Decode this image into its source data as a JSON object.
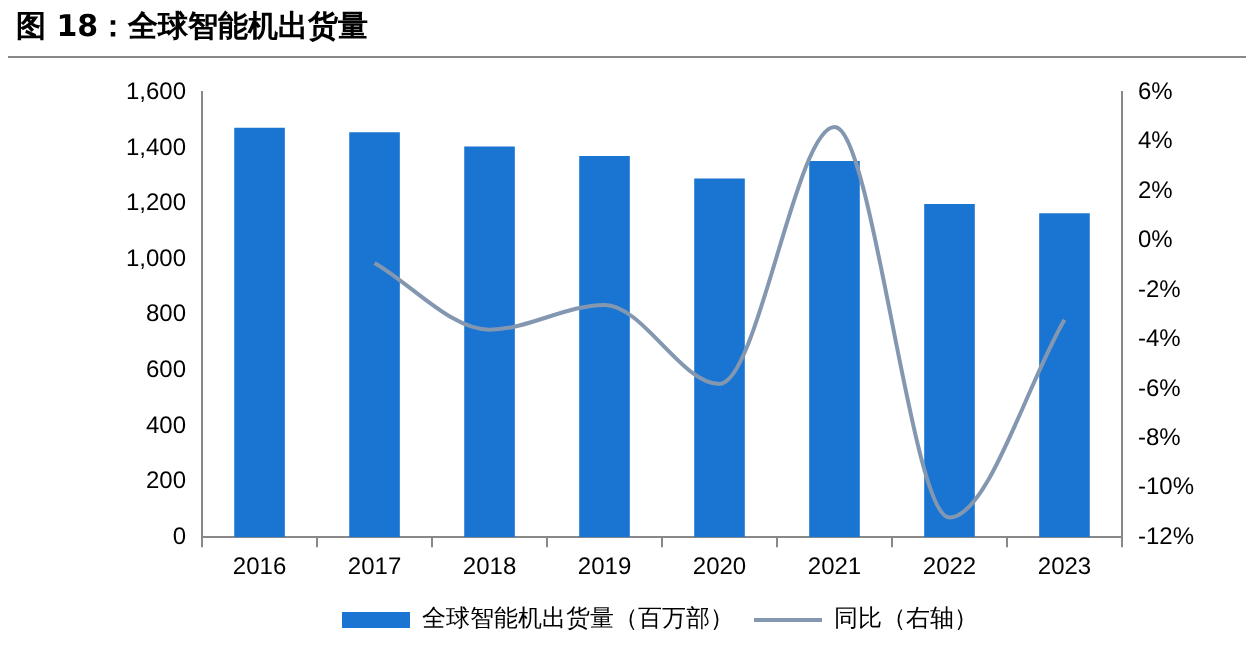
{
  "chart_data": {
    "type": "bar",
    "title": "图 18：全球智能机出货量",
    "categories": [
      "2016",
      "2017",
      "2018",
      "2019",
      "2020",
      "2021",
      "2022",
      "2023"
    ],
    "series": [
      {
        "name": "全球智能机出货量（百万部）",
        "color": "#1a75d2",
        "values": [
          1473,
          1457,
          1405,
          1371,
          1290,
          1353,
          1199,
          1165
        ]
      },
      {
        "name": "同比（右轴）",
        "type": "line",
        "axis": "y2",
        "color": "#8497b0",
        "values": [
          null,
          -0.9,
          -3.6,
          -2.6,
          -5.8,
          4.6,
          -11.2,
          -3.2
        ]
      }
    ],
    "ylim": [
      0,
      1600
    ],
    "yticks": [
      {
        "value": 0,
        "label": "0"
      },
      {
        "value": 200,
        "label": "200"
      },
      {
        "value": 400,
        "label": "400"
      },
      {
        "value": 600,
        "label": "600"
      },
      {
        "value": 800,
        "label": "800"
      },
      {
        "value": 1000,
        "label": "1,000"
      },
      {
        "value": 1200,
        "label": "1,200"
      },
      {
        "value": 1400,
        "label": "1,400"
      },
      {
        "value": 1600,
        "label": "1,600"
      }
    ],
    "y2lim": [
      -12,
      6
    ],
    "y2ticks": [
      {
        "value": -12,
        "label": "-12%"
      },
      {
        "value": -10,
        "label": "-10%"
      },
      {
        "value": -8,
        "label": "-8%"
      },
      {
        "value": -6,
        "label": "-6%"
      },
      {
        "value": -4,
        "label": "-4%"
      },
      {
        "value": -2,
        "label": "-2%"
      },
      {
        "value": 0,
        "label": "0%"
      },
      {
        "value": 2,
        "label": "2%"
      },
      {
        "value": 4,
        "label": "4%"
      },
      {
        "value": 6,
        "label": "6%"
      }
    ],
    "grid": false,
    "legend": "bottom",
    "marker": "none"
  }
}
